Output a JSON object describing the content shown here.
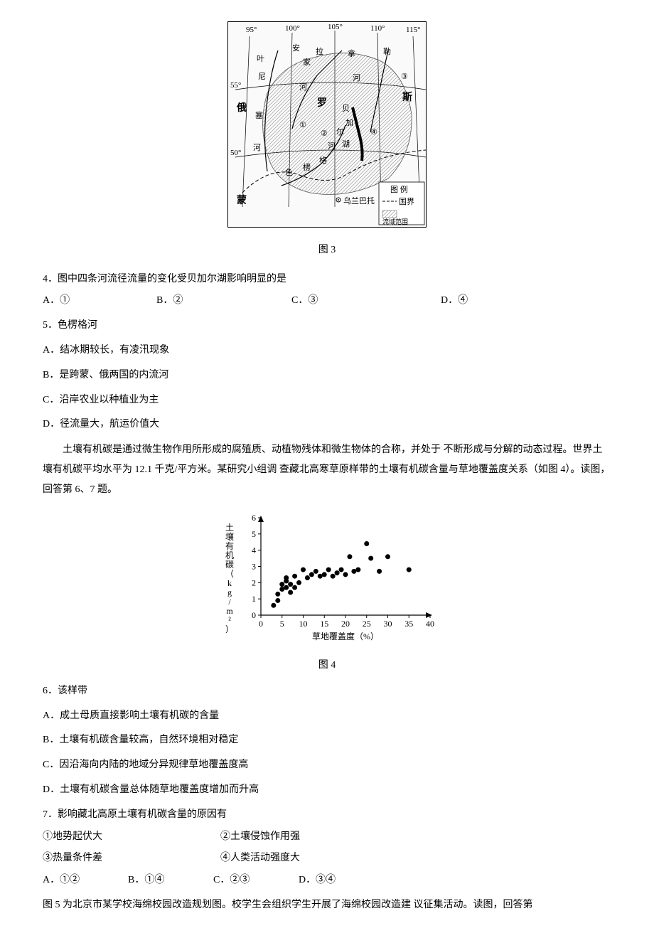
{
  "figure3": {
    "caption": "图 3",
    "longitudes": [
      "95°",
      "100°",
      "105°",
      "110°",
      "115°"
    ],
    "latitudes": [
      "55°",
      "50°"
    ],
    "labels": {
      "russia1": "俄",
      "russia2": "罗",
      "russia3": "斯",
      "mongolia1": "蒙",
      "mongolia2": "古",
      "rivers": [
        "叶",
        "尼",
        "塞",
        "河",
        "安",
        "家",
        "拉",
        "河",
        "色",
        "楞",
        "格",
        "河",
        "贝",
        "加",
        "尔",
        "湖",
        "勒",
        "拿",
        "河"
      ],
      "city": "乌兰巴托",
      "markers": [
        "①",
        "②",
        "③",
        "④"
      ],
      "legend_title": "图 例",
      "legend_border": "国界",
      "legend_basin": "流域范围"
    }
  },
  "q4": {
    "stem": "4．图中四条河流径流量的变化受贝加尔湖影响明显的是",
    "a": "A．①",
    "b": "B．②",
    "c": "C．③",
    "d": "D．④"
  },
  "q5": {
    "stem": "5．色楞格河",
    "a": "A．结冰期较长，有凌汛现象",
    "b": "B．是跨蒙、俄两国的内流河",
    "c": "C．沿岸农业以种植业为主",
    "d": "D．径流量大，航运价值大"
  },
  "passage2": "土壤有机碳是通过微生物作用所形成的腐殖质、动植物残体和微生物体的合称，并处于 不断形成与分解的动态过程。世界土壤有机碳平均水平为 12.1  千克/平方米。某研究小组调   查藏北高寒草原样带的土壤有机碳含量与草地覆盖度关系（如图 4）。读图，回答第 6、7 题。",
  "figure4": {
    "caption": "图 4",
    "ylabel": "土壤有机碳（kg/m²）",
    "xlabel": "草地覆盖度（%）",
    "ylim": [
      0,
      6
    ],
    "yticks": [
      0,
      1,
      2,
      3,
      4,
      5,
      6
    ],
    "xlim": [
      0,
      40
    ],
    "xticks": [
      0,
      5,
      10,
      15,
      20,
      25,
      30,
      35,
      40
    ],
    "points": [
      [
        3,
        0.6
      ],
      [
        4,
        0.9
      ],
      [
        4,
        1.3
      ],
      [
        5,
        1.6
      ],
      [
        5,
        1.9
      ],
      [
        6,
        1.7
      ],
      [
        6,
        2.1
      ],
      [
        6,
        2.3
      ],
      [
        7,
        1.4
      ],
      [
        7,
        1.9
      ],
      [
        8,
        1.7
      ],
      [
        8,
        2.4
      ],
      [
        9,
        2.0
      ],
      [
        10,
        2.8
      ],
      [
        11,
        2.3
      ],
      [
        12,
        2.5
      ],
      [
        13,
        2.7
      ],
      [
        14,
        2.4
      ],
      [
        15,
        2.5
      ],
      [
        16,
        2.8
      ],
      [
        17,
        2.4
      ],
      [
        18,
        2.6
      ],
      [
        19,
        2.8
      ],
      [
        20,
        2.5
      ],
      [
        21,
        3.6
      ],
      [
        22,
        2.7
      ],
      [
        23,
        2.8
      ],
      [
        25,
        4.4
      ],
      [
        26,
        3.5
      ],
      [
        28,
        2.7
      ],
      [
        30,
        3.6
      ],
      [
        35,
        2.8
      ]
    ],
    "marker_color": "#000000",
    "marker_radius": 3.5,
    "axis_color": "#000000"
  },
  "q6": {
    "stem": "6．该样带",
    "a": "A．成土母质直接影响土壤有机碳的含量",
    "b": "B．土壤有机碳含量较高，自然环境相对稳定",
    "c": "C．因沿海向内陆的地域分异规律草地覆盖度高",
    "d": "D．土壤有机碳含量总体随草地覆盖度增加而升高"
  },
  "q7": {
    "stem": "7．影响藏北高原土壤有机碳含量的原因有",
    "f1": "①地势起伏大",
    "f2": "②土壤侵蚀作用强",
    "f3": "③热量条件差",
    "f4": "④人类活动强度大",
    "a": "A．①②",
    "b": "B．①④",
    "c": "C．②③",
    "d": "D．③④"
  },
  "passage3": "图  5 为北京市某学校海绵校园改造规划图。校学生会组织学生开展了海绵校园改造建  议征集活动。读图，回答第"
}
